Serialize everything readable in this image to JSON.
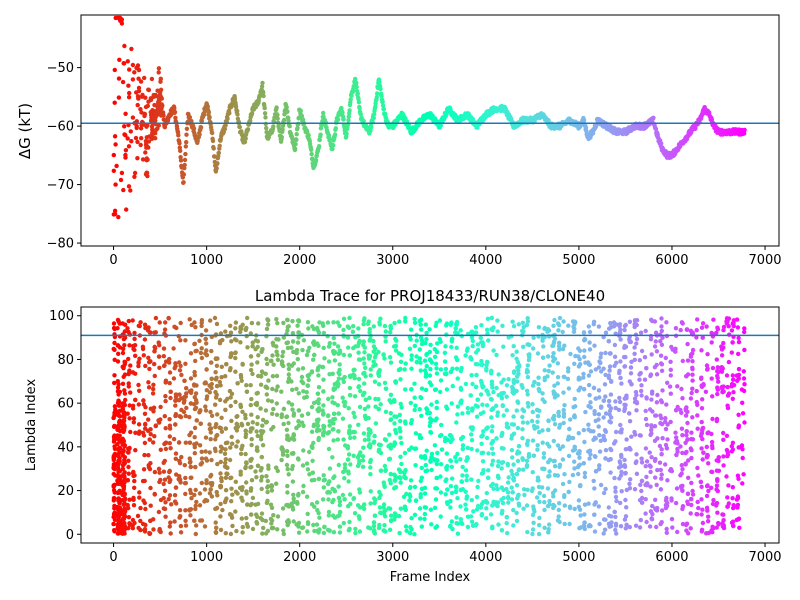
{
  "chart_data": [
    {
      "type": "scatter",
      "title": "",
      "xlabel": "",
      "ylabel": "ΔG (kT)",
      "xlim": [
        -350,
        7150
      ],
      "ylim": [
        -80.5,
        -41
      ],
      "xticks": [
        0,
        1000,
        2000,
        3000,
        4000,
        5000,
        6000,
        7000
      ],
      "yticks": [
        -80,
        -70,
        -60,
        -50
      ],
      "hline": -59.5,
      "hline_color": "#1f77b4",
      "colormap": "rainbow (red at early frames → violet at late frames)",
      "series": [
        {
          "x": [
            0,
            30,
            60,
            100,
            150,
            200,
            250,
            300,
            350,
            400,
            450,
            500,
            550,
            600,
            650,
            700,
            750,
            800,
            850,
            900,
            950,
            1000,
            1050,
            1100,
            1150,
            1200,
            1250,
            1300,
            1350,
            1400,
            1450,
            1500,
            1550,
            1600,
            1650,
            1700,
            1750,
            1800,
            1850,
            1900,
            1950,
            2000,
            2050,
            2100,
            2150,
            2200,
            2250,
            2300,
            2350,
            2400,
            2450,
            2500,
            2550,
            2600,
            2650,
            2700,
            2750,
            2800,
            2850,
            2900,
            2950,
            3000,
            3100,
            3200,
            3300,
            3400,
            3500,
            3600,
            3700,
            3800,
            3900,
            4000,
            4100,
            4200,
            4300,
            4400,
            4500,
            4600,
            4700,
            4800,
            4900,
            5000,
            5050,
            5100,
            5150,
            5200,
            5300,
            5400,
            5500,
            5600,
            5700,
            5800,
            5850,
            5900,
            5950,
            6000,
            6050,
            6100,
            6150,
            6200,
            6300,
            6350,
            6400,
            6450,
            6500,
            6550,
            6600,
            6700,
            6780
          ],
          "y": [
            -55,
            -60,
            -50,
            -58,
            -62,
            -56,
            -60,
            -55,
            -63,
            -58,
            -59,
            -54,
            -60,
            -58,
            -57,
            -62,
            -70,
            -58,
            -60,
            -63,
            -59,
            -56,
            -60,
            -68,
            -62,
            -60,
            -57,
            -55,
            -60,
            -63,
            -60,
            -57,
            -56,
            -53,
            -62,
            -61,
            -57,
            -63,
            -56,
            -61,
            -64,
            -57,
            -60,
            -62,
            -67,
            -64,
            -58,
            -61,
            -64,
            -59,
            -57,
            -62,
            -55,
            -52,
            -58,
            -60,
            -61,
            -58,
            -52,
            -57,
            -60,
            -60,
            -58,
            -61,
            -59,
            -58,
            -60,
            -57,
            -59,
            -58,
            -60,
            -58,
            -57,
            -57,
            -60,
            -59,
            -59,
            -58,
            -60,
            -60,
            -59,
            -60,
            -59,
            -62,
            -61,
            -59,
            -60,
            -61,
            -61,
            -60,
            -60,
            -59,
            -62,
            -64,
            -65,
            -65,
            -64,
            -63,
            -62,
            -61,
            -59,
            -57,
            -58,
            -60,
            -61,
            -61,
            -61,
            -61,
            -61
          ]
        }
      ]
    },
    {
      "type": "scatter",
      "title": "Lambda Trace for PROJ18433/RUN38/CLONE40",
      "xlabel": "Frame Index",
      "ylabel": "Lambda Index",
      "xlim": [
        -350,
        7150
      ],
      "ylim": [
        -4,
        104
      ],
      "xticks": [
        0,
        1000,
        2000,
        3000,
        4000,
        5000,
        6000,
        7000
      ],
      "yticks": [
        0,
        20,
        40,
        60,
        80,
        100
      ],
      "hline": 91,
      "hline_color": "#1f77b4",
      "colormap": "rainbow (red at early frames → violet at late frames)",
      "x_range": [
        0,
        6780
      ],
      "y_range": [
        0,
        99
      ]
    }
  ]
}
